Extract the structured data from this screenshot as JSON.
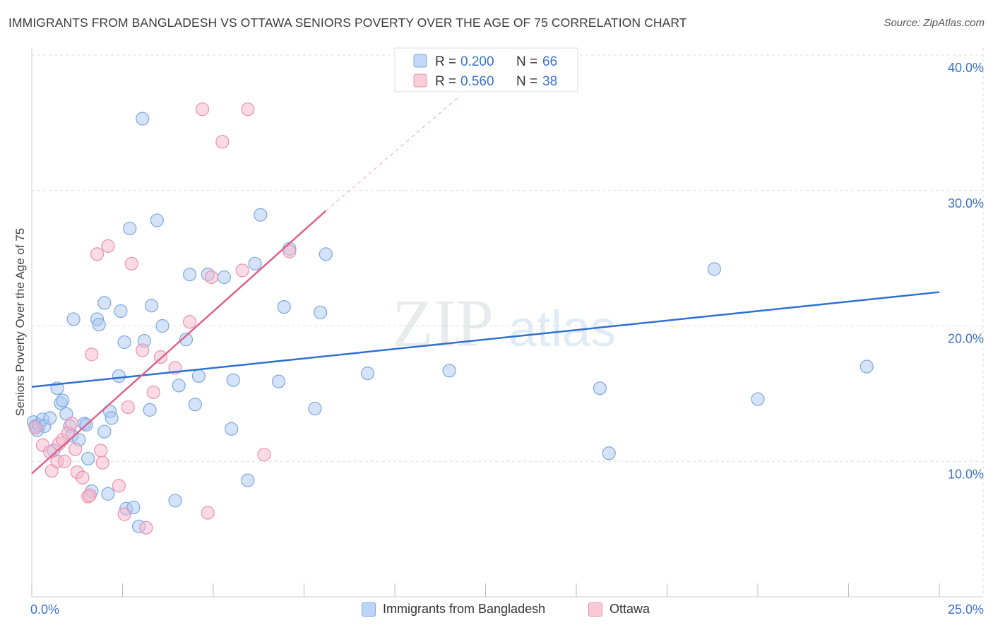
{
  "title": "IMMIGRANTS FROM BANGLADESH VS OTTAWA SENIORS POVERTY OVER THE AGE OF 75 CORRELATION CHART",
  "source": "Source: ZipAtlas.com",
  "watermark": {
    "zip": "ZIP",
    "atlas": "atlas"
  },
  "colors": {
    "blue_fill": "#a9c8f2",
    "blue_stroke": "#7ba7e0",
    "blue_line": "#2f6fd1",
    "pink_fill": "#f6b8cb",
    "pink_stroke": "#ec8fab",
    "pink_line": "#e0608a",
    "axis_text": "#3a72c9",
    "grid": "#dddddd"
  },
  "legend_top": [
    {
      "r_label": "R = ",
      "r_value": "0.200",
      "n_label": "N = ",
      "n_value": "66",
      "color": "blue"
    },
    {
      "r_label": "R = ",
      "r_value": "0.560",
      "n_label": "N = ",
      "n_value": "38",
      "color": "pink"
    }
  ],
  "legend_bottom": [
    {
      "label": "Immigrants from Bangladesh",
      "color": "blue"
    },
    {
      "label": "Ottawa",
      "color": "pink"
    }
  ],
  "chart_data": {
    "type": "scatter",
    "title": "IMMIGRANTS FROM BANGLADESH VS OTTAWA SENIORS POVERTY OVER THE AGE OF 75 CORRELATION CHART",
    "xlabel": "",
    "ylabel": "Seniors Poverty Over the Age of 75",
    "xlim": [
      0,
      25
    ],
    "ylim": [
      0,
      40
    ],
    "x_tick_labels": [
      "0.0%",
      "25.0%"
    ],
    "y_ticks": [
      10,
      20,
      30,
      40
    ],
    "y_tick_labels": [
      "10.0%",
      "20.0%",
      "30.0%",
      "40.0%"
    ],
    "grid": true,
    "series": [
      {
        "name": "Immigrants from Bangladesh",
        "color": "blue",
        "trend": {
          "x": [
            0,
            25
          ],
          "y": [
            15.5,
            22.5
          ],
          "dashed_ext": null
        },
        "points": [
          [
            0.05,
            12.9
          ],
          [
            0.1,
            12.6
          ],
          [
            0.15,
            12.3
          ],
          [
            0.2,
            12.7
          ],
          [
            0.3,
            13.1
          ],
          [
            0.35,
            12.6
          ],
          [
            0.5,
            13.2
          ],
          [
            0.6,
            10.8
          ],
          [
            0.7,
            15.4
          ],
          [
            0.8,
            14.3
          ],
          [
            0.85,
            14.5
          ],
          [
            0.95,
            13.5
          ],
          [
            1.05,
            12.6
          ],
          [
            1.1,
            11.9
          ],
          [
            1.3,
            11.6
          ],
          [
            1.45,
            12.8
          ],
          [
            1.5,
            12.7
          ],
          [
            1.55,
            10.2
          ],
          [
            1.65,
            7.8
          ],
          [
            1.15,
            20.5
          ],
          [
            1.8,
            20.5
          ],
          [
            1.85,
            20.1
          ],
          [
            2.0,
            12.2
          ],
          [
            2.0,
            21.7
          ],
          [
            2.1,
            7.6
          ],
          [
            2.15,
            13.7
          ],
          [
            2.2,
            13.2
          ],
          [
            2.4,
            16.3
          ],
          [
            2.45,
            21.1
          ],
          [
            2.55,
            18.8
          ],
          [
            2.6,
            6.5
          ],
          [
            2.7,
            27.2
          ],
          [
            2.8,
            6.6
          ],
          [
            2.95,
            5.2
          ],
          [
            3.05,
            35.3
          ],
          [
            3.1,
            18.9
          ],
          [
            3.25,
            13.8
          ],
          [
            3.3,
            21.5
          ],
          [
            3.45,
            27.8
          ],
          [
            3.6,
            20.0
          ],
          [
            3.95,
            7.1
          ],
          [
            4.05,
            15.6
          ],
          [
            4.25,
            19.0
          ],
          [
            4.35,
            23.8
          ],
          [
            4.5,
            14.2
          ],
          [
            4.6,
            16.3
          ],
          [
            4.85,
            23.8
          ],
          [
            5.3,
            23.6
          ],
          [
            5.5,
            12.4
          ],
          [
            5.55,
            16.0
          ],
          [
            5.95,
            8.6
          ],
          [
            6.15,
            24.6
          ],
          [
            6.3,
            28.2
          ],
          [
            6.8,
            15.9
          ],
          [
            6.95,
            21.4
          ],
          [
            7.1,
            25.7
          ],
          [
            7.8,
            13.9
          ],
          [
            7.95,
            21.0
          ],
          [
            8.1,
            25.3
          ],
          [
            9.25,
            16.5
          ],
          [
            11.5,
            16.7
          ],
          [
            15.65,
            15.4
          ],
          [
            15.9,
            10.6
          ],
          [
            18.8,
            24.2
          ],
          [
            20.0,
            14.6
          ],
          [
            23.0,
            17.0
          ]
        ]
      },
      {
        "name": "Ottawa",
        "color": "pink",
        "trend": {
          "x": [
            0,
            8.1
          ],
          "y": [
            9.1,
            28.5
          ],
          "dashed_ext": {
            "x": [
              8.1,
              11.8
            ],
            "y": [
              28.5,
              37.0
            ]
          }
        },
        "points": [
          [
            0.1,
            12.5
          ],
          [
            0.3,
            11.2
          ],
          [
            0.5,
            10.7
          ],
          [
            0.55,
            9.3
          ],
          [
            0.7,
            10.0
          ],
          [
            0.75,
            11.3
          ],
          [
            0.85,
            11.6
          ],
          [
            0.9,
            10.0
          ],
          [
            1.0,
            12.1
          ],
          [
            1.1,
            12.8
          ],
          [
            1.2,
            10.9
          ],
          [
            1.25,
            9.2
          ],
          [
            1.4,
            8.8
          ],
          [
            1.55,
            7.4
          ],
          [
            1.6,
            7.5
          ],
          [
            1.65,
            17.9
          ],
          [
            1.8,
            25.3
          ],
          [
            1.9,
            10.8
          ],
          [
            1.95,
            9.9
          ],
          [
            2.1,
            25.9
          ],
          [
            2.4,
            8.2
          ],
          [
            2.55,
            6.1
          ],
          [
            2.65,
            14.0
          ],
          [
            2.75,
            24.6
          ],
          [
            3.05,
            18.2
          ],
          [
            3.15,
            5.1
          ],
          [
            3.35,
            15.1
          ],
          [
            3.55,
            17.7
          ],
          [
            3.95,
            16.9
          ],
          [
            4.35,
            20.3
          ],
          [
            4.7,
            36.0
          ],
          [
            4.85,
            6.2
          ],
          [
            4.95,
            23.6
          ],
          [
            5.25,
            33.6
          ],
          [
            5.95,
            36.0
          ],
          [
            6.4,
            10.5
          ],
          [
            7.1,
            25.5
          ],
          [
            5.8,
            24.1
          ]
        ]
      }
    ]
  }
}
